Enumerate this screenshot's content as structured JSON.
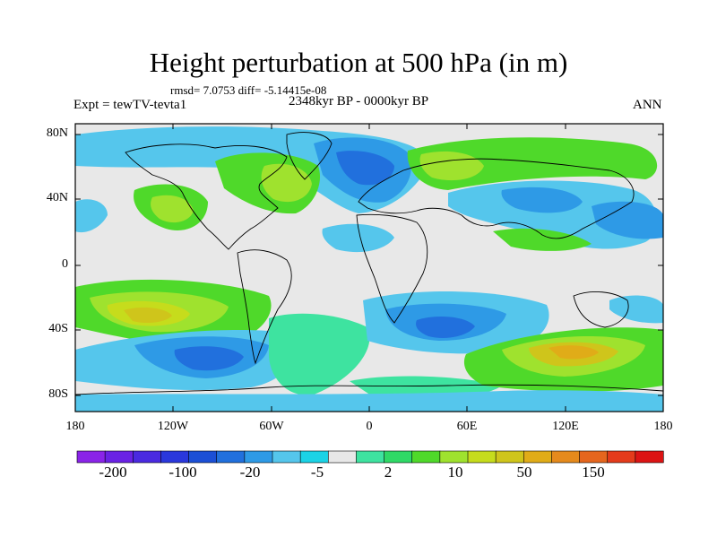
{
  "title": "Height perturbation at 500 hPa (in m)",
  "stats_line": "rmsd= 7.0753  diff= -5.14415e-08",
  "experiment_label": "Expt = tewTV-tevta1",
  "period_label": "2348kyr BP - 0000kyr BP",
  "season_label": "ANN",
  "colors": {
    "neutral": "#e8e8e8",
    "lightblue": "#55c6ec",
    "midblue": "#2e9ae6",
    "blue": "#2170dd",
    "darkblue": "#1b4fd6",
    "cyan": "#1bd3e6",
    "seagreen": "#3ee3a0",
    "green": "#4fd92a",
    "limegreen": "#9fe22e",
    "yellowgreen": "#c6dc1c",
    "olive": "#cfc51b",
    "gold": "#e0ac18",
    "coast": "#000000"
  },
  "map": {
    "y_ticks": [
      "80N",
      "40N",
      "0",
      "40S",
      "80S"
    ],
    "x_ticks": [
      "180",
      "120W",
      "60W",
      "0",
      "60E",
      "120E",
      "180"
    ]
  },
  "colorbar": {
    "colors": [
      "#8a24e8",
      "#6a22e4",
      "#4a2ae0",
      "#2a38dc",
      "#1b4fd6",
      "#2170dd",
      "#2e9ae6",
      "#55c6ec",
      "#1bd3e6",
      "#e8e8e8",
      "#3ee3a0",
      "#2fd966",
      "#4fd92a",
      "#9fe22e",
      "#c6dc1c",
      "#cfc51b",
      "#e0ac18",
      "#e58a1c",
      "#e5661e",
      "#e43b1b",
      "#dc1414"
    ],
    "labels": [
      "-200",
      "-100",
      "-20",
      "-5",
      "2",
      "10",
      "50",
      "150"
    ]
  }
}
